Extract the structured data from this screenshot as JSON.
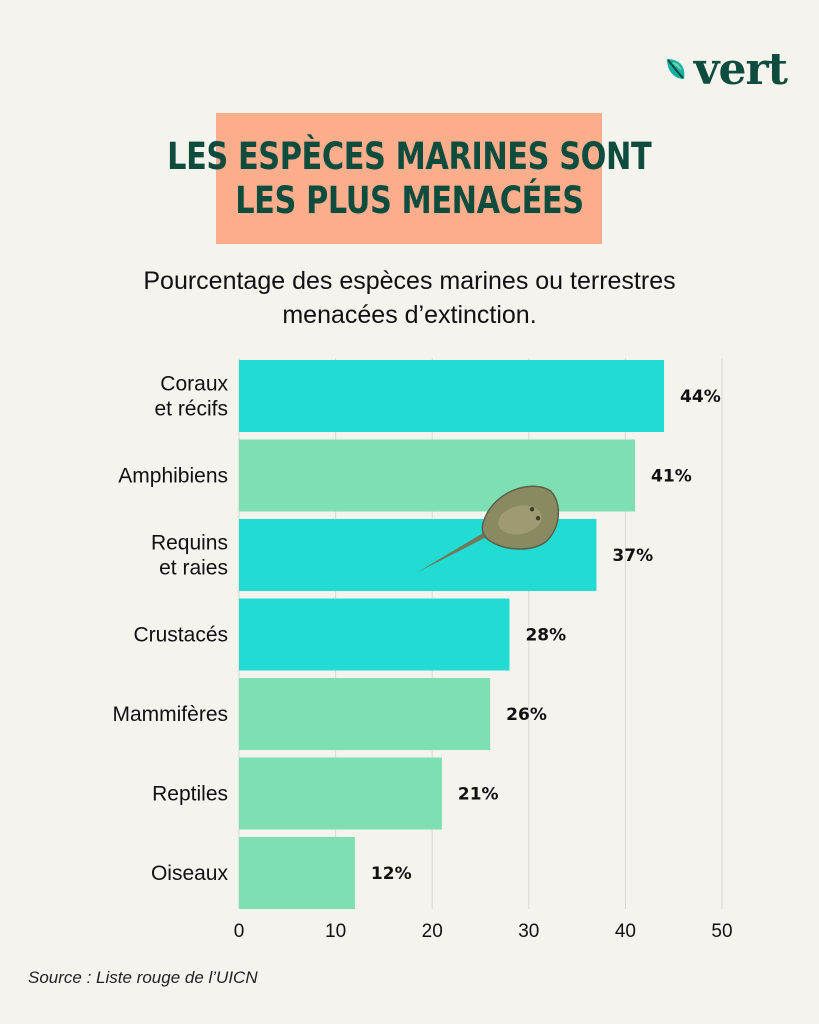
{
  "logo": {
    "text": "vert",
    "icon": "leaf-icon"
  },
  "title_lines": [
    "LES ESPÈCES MARINES SONT",
    "LES PLUS MENACÉES"
  ],
  "subtitle_lines": [
    "Pourcentage des espèces marines ou terrestres",
    "menacées d’extinction."
  ],
  "source": "Source : Liste rouge de l’UICN",
  "colors": {
    "marine": "#22dbd3",
    "terrestrial": "#7ee0b2",
    "title_bg": "#fcae8c",
    "text_dark": "#0e4c3e"
  },
  "illustration": "stingray-icon",
  "chart_data": {
    "type": "bar",
    "orientation": "horizontal",
    "categories": [
      [
        "Coraux",
        "et récifs"
      ],
      [
        "Amphibiens"
      ],
      [
        "Requins",
        "et raies"
      ],
      [
        "Crustacés"
      ],
      [
        "Mammifères"
      ],
      [
        "Reptiles"
      ],
      [
        "Oiseaux"
      ]
    ],
    "values": [
      44,
      41,
      37,
      28,
      26,
      21,
      12
    ],
    "value_labels": [
      "44%",
      "41%",
      "37%",
      "28%",
      "26%",
      "21%",
      "12%"
    ],
    "group": [
      "marine",
      "terrestrial",
      "marine",
      "marine",
      "terrestrial",
      "terrestrial",
      "terrestrial"
    ],
    "xlim": [
      0,
      50
    ],
    "xticks": [
      0,
      10,
      20,
      30,
      40,
      50
    ],
    "grid": true
  }
}
